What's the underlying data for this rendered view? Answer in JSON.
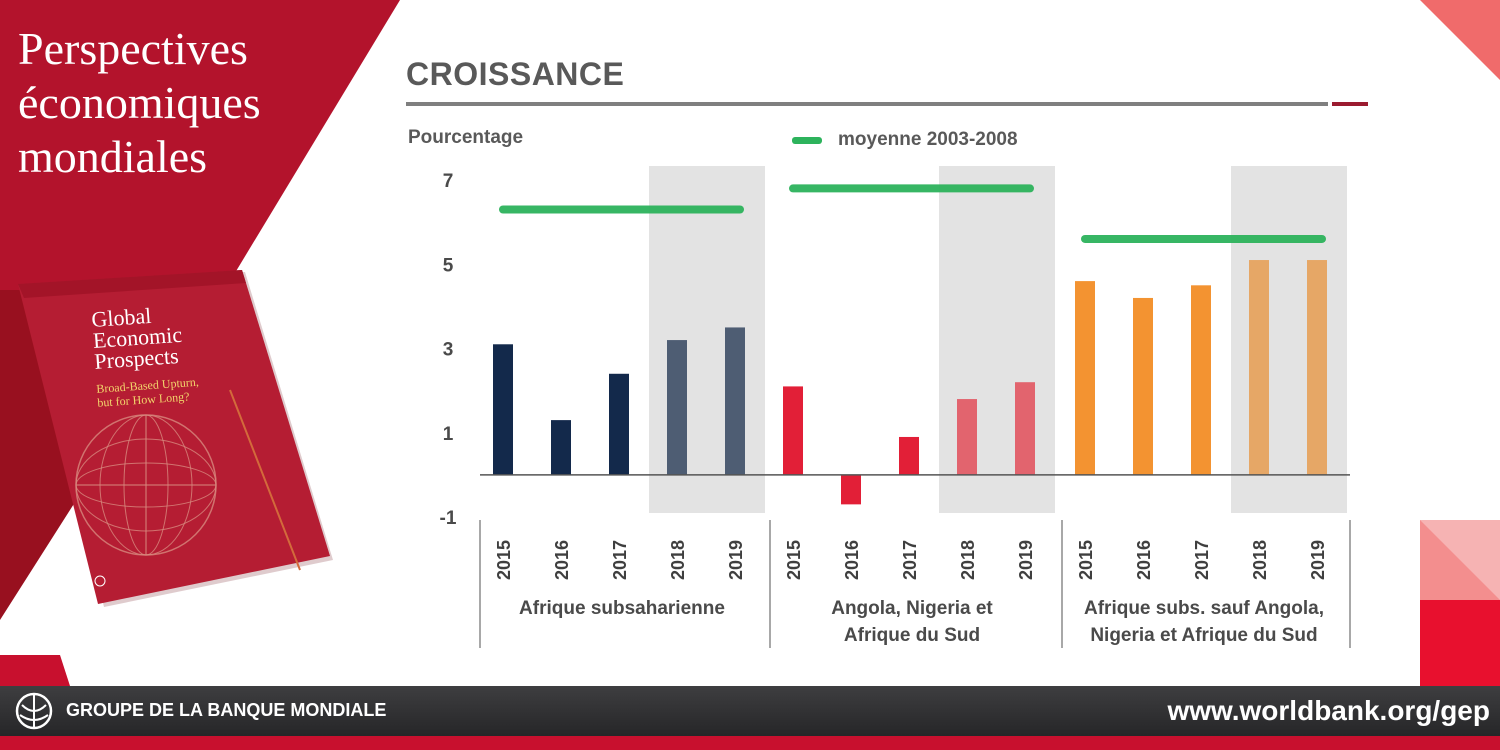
{
  "brand": {
    "title_lines": [
      "Perspectives",
      "économiques",
      "mondiales"
    ]
  },
  "cover": {
    "title_lines": [
      "Global",
      "Economic",
      "Prospects"
    ],
    "subtitle_lines": [
      "Broad-Based Upturn,",
      "but for How Long?"
    ]
  },
  "header": {
    "title": "CROISSANCE"
  },
  "footer": {
    "org": "GROUPE DE LA BANQUE MONDIALE",
    "url": "www.worldbank.org/gep"
  },
  "colors": {
    "brand_red": "#c8102e",
    "navy": "#13294b",
    "red": "#e21f37",
    "orange": "#f39331",
    "average_green": "#2db35c",
    "forecast_shade": "#e3e3e3"
  },
  "chart_data": {
    "type": "bar",
    "ylabel": "Pourcentage",
    "ylim": [
      -1,
      7
    ],
    "yticks": [
      7,
      5,
      3,
      1,
      -1
    ],
    "legend": [
      {
        "name": "moyenne 2003-2008",
        "color": "#2db35c"
      }
    ],
    "shaded_years": [
      "2018",
      "2019"
    ],
    "groups": [
      {
        "label_lines": [
          "Afrique subsaharienne"
        ],
        "categories": [
          "2015",
          "2016",
          "2017",
          "2018",
          "2019"
        ],
        "values": [
          3.1,
          1.3,
          2.4,
          3.2,
          3.5
        ],
        "average_2003_2008": 6.3,
        "color": "#13294b",
        "forecast_color": "#4e5d73"
      },
      {
        "label_lines": [
          "Angola, Nigeria et",
          "Afrique du Sud"
        ],
        "categories": [
          "2015",
          "2016",
          "2017",
          "2018",
          "2019"
        ],
        "values": [
          2.1,
          -0.7,
          0.9,
          1.8,
          2.2
        ],
        "average_2003_2008": 6.8,
        "color": "#e21f37",
        "forecast_color": "#e2646e"
      },
      {
        "label_lines": [
          "Afrique subs. sauf Angola,",
          "Nigeria et Afrique du Sud"
        ],
        "categories": [
          "2015",
          "2016",
          "2017",
          "2018",
          "2019"
        ],
        "values": [
          4.6,
          4.2,
          4.5,
          5.1,
          5.1
        ],
        "average_2003_2008": 5.6,
        "color": "#f39331",
        "forecast_color": "#e6a766"
      }
    ]
  }
}
